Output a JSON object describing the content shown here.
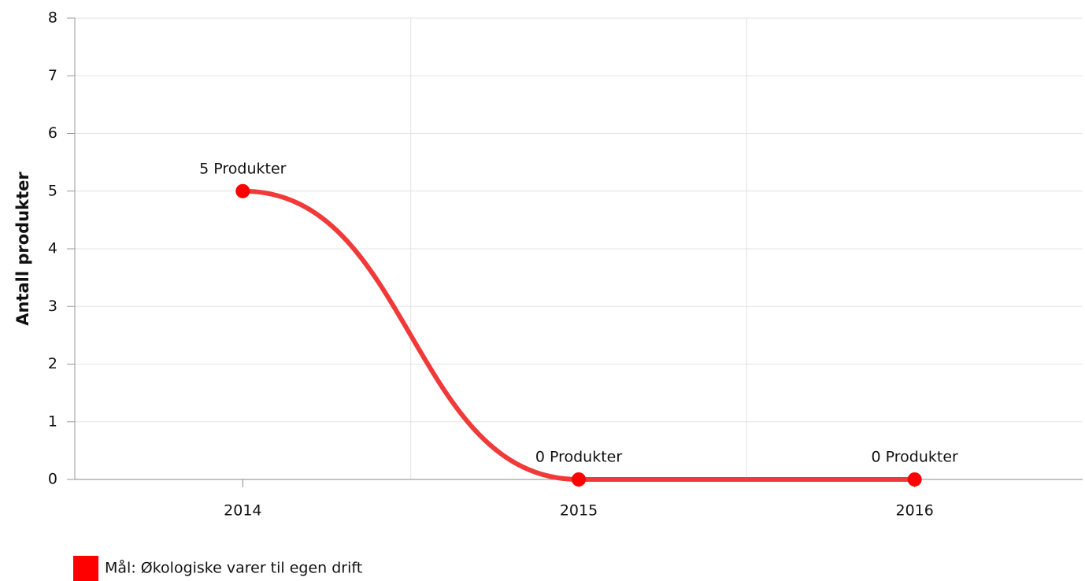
{
  "chart_data": {
    "type": "line",
    "y_label": "Antall produkter",
    "categories": [
      "2014",
      "2015",
      "2016"
    ],
    "series": [
      {
        "name": "Mål: Økologiske varer til egen drift",
        "color": "#ff0000",
        "line_color": "#f03a3a",
        "values": [
          5,
          0,
          0
        ],
        "value_labels": [
          "5 Produkter",
          "0 Produkter",
          "0 Produkter"
        ]
      }
    ],
    "ylim": [
      0,
      8
    ],
    "yticks": [
      0,
      1,
      2,
      3,
      4,
      5,
      6,
      7,
      8
    ],
    "grid": true,
    "smooth": true,
    "legend": "bottom-left"
  }
}
